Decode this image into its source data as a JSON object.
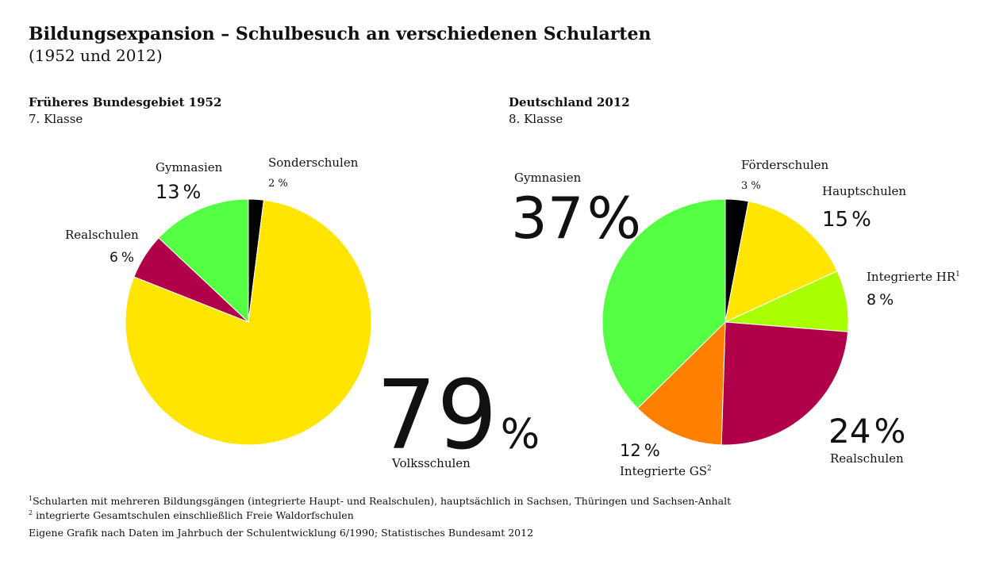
{
  "title": "Bildungsexpansion – Schulbesuch an verschiedenen Schularten",
  "subtitle": "(1952 und 2012)",
  "colors": {
    "black": "#000000",
    "green": "#55ff44",
    "crimson": "#b0004a",
    "yellow": "#ffe500",
    "lime": "#aaff00",
    "orange": "#ff8000"
  },
  "chart_data": [
    {
      "type": "pie",
      "title": "Früheres Bundesgebiet 1952",
      "subtitle": "7. Klasse",
      "slices": [
        {
          "label": "Sonderschulen",
          "value": 2,
          "display": "2 %",
          "color": "#000000"
        },
        {
          "label": "Volksschulen",
          "value": 79,
          "display": "79%",
          "color": "#ffe500"
        },
        {
          "label": "Realschulen",
          "value": 6,
          "display": "6 %",
          "color": "#b0004a"
        },
        {
          "label": "Gymnasien",
          "value": 13,
          "display": "13 %",
          "color": "#55ff44"
        }
      ]
    },
    {
      "type": "pie",
      "title": "Deutschland 2012",
      "subtitle": "8. Klasse",
      "slices": [
        {
          "label": "Förderschulen",
          "value": 3,
          "display": "3 %",
          "color": "#000000"
        },
        {
          "label": "Hauptschulen",
          "value": 15,
          "display": "15 %",
          "color": "#ffe500"
        },
        {
          "label": "Integrierte HR",
          "sup": "1",
          "value": 8,
          "display": "8 %",
          "color": "#aaff00"
        },
        {
          "label": "Realschulen",
          "value": 24,
          "display": "24 %",
          "color": "#b0004a"
        },
        {
          "label": "Integrierte GS",
          "sup": "2",
          "value": 12,
          "display": "12 %",
          "color": "#ff8000"
        },
        {
          "label": "Gymnasien",
          "value": 37,
          "display": "37 %",
          "color": "#55ff44"
        }
      ]
    }
  ],
  "footnotes": [
    {
      "sup": "1",
      "text": "Schularten mit mehreren Bildungsgängen (integrierte Haupt- und Realschulen), hauptsächlich in Sachsen, Thüringen und Sachsen-Anhalt"
    },
    {
      "sup": "2",
      "text": "integrierte Gesamtschulen einschließlich Freie Waldorfschulen"
    }
  ],
  "source": "Eigene Grafik nach Daten im Jahrbuch der Schulentwicklung 6/1990; Statistisches Bundesamt 2012"
}
